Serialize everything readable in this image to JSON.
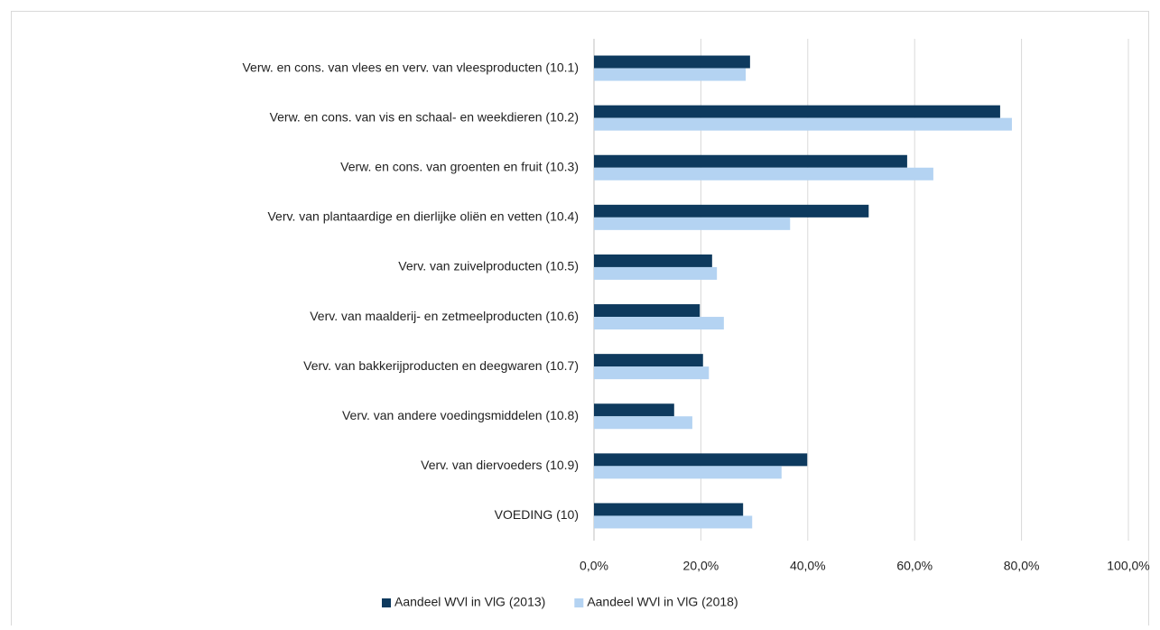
{
  "chart_data": {
    "type": "bar",
    "orientation": "horizontal",
    "categories": [
      "Verw. en cons. van vlees en verv. van vleesproducten (10.1)",
      "Verw. en cons. van vis en schaal- en weekdieren (10.2)",
      "Verw. en cons. van groenten en fruit (10.3)",
      "Verv. van plantaardige en dierlijke oliën en vetten (10.4)",
      "Verv. van zuivelproducten (10.5)",
      "Verv. van maalderij- en zetmeelproducten (10.6)",
      "Verv. van bakkerijproducten en deegwaren (10.7)",
      "Verv. van andere voedingsmiddelen (10.8)",
      "Verv. van diervoeders (10.9)",
      "VOEDING (10)"
    ],
    "series": [
      {
        "name": "Aandeel WVl in VlG (2013)",
        "color": "#0e3a5e",
        "values": [
          29.2,
          76.0,
          58.6,
          51.4,
          22.1,
          19.8,
          20.4,
          15.0,
          39.9,
          27.9
        ]
      },
      {
        "name": "Aandeel WVl in VlG (2018)",
        "color": "#b4d3f2",
        "values": [
          28.4,
          78.2,
          63.5,
          36.7,
          23.0,
          24.3,
          21.5,
          18.4,
          35.1,
          29.6
        ]
      }
    ],
    "xlim": [
      0,
      100
    ],
    "xticks": [
      {
        "value": 0,
        "label": "0,0%"
      },
      {
        "value": 20,
        "label": "20,0%"
      },
      {
        "value": 40,
        "label": "40,0%"
      },
      {
        "value": 60,
        "label": "60,0%"
      },
      {
        "value": 80,
        "label": "80,0%"
      },
      {
        "value": 100,
        "label": "100,0%"
      }
    ],
    "grid": true,
    "legend": "bottom"
  }
}
